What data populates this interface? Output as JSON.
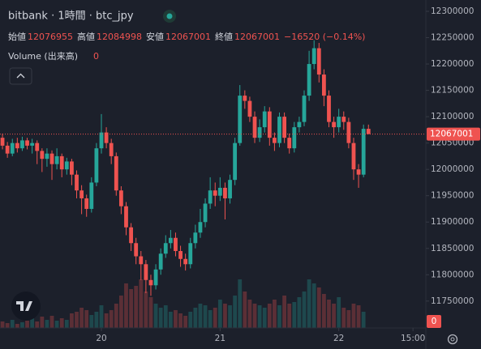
{
  "chart_data": {
    "type": "candlestick",
    "title": "bitbank · 1時間 · btc_jpy",
    "ohlc_labels": [
      "始値",
      "高値",
      "安値",
      "終値"
    ],
    "change": "−16520 (−0.14%)",
    "volume_label": "Volume (出来高)",
    "up_color": "#26a69a",
    "down_color": "#ef5350",
    "grid": false,
    "ylim": [
      11699000,
      12321500
    ],
    "yticks": [
      11750000,
      11800000,
      11850000,
      11900000,
      11950000,
      12000000,
      12050000,
      12100000,
      12150000,
      12200000,
      12250000,
      12300000
    ],
    "xlim": [
      -0.5,
      85.6
    ],
    "xticks": [
      {
        "value": 20,
        "label": "20"
      },
      {
        "value": 44,
        "label": "21"
      },
      {
        "value": 68,
        "label": "22"
      },
      {
        "value": 83,
        "label": "15:00"
      }
    ],
    "volume_lim": [
      0,
      100
    ],
    "candles": [
      [
        12060000,
        12068000,
        12038000,
        12045000
      ],
      [
        12045000,
        12052000,
        12022000,
        12030000
      ],
      [
        12030000,
        12058000,
        12025000,
        12050000
      ],
      [
        12050000,
        12060000,
        12032000,
        12040000
      ],
      [
        12040000,
        12062000,
        12035000,
        12055000
      ],
      [
        12055000,
        12060000,
        12038000,
        12045000
      ],
      [
        12045000,
        12058000,
        12030000,
        12050000
      ],
      [
        12050000,
        12055000,
        12010000,
        12035000
      ],
      [
        12035000,
        12040000,
        11995000,
        12020000
      ],
      [
        12020000,
        12040000,
        12005000,
        12030000
      ],
      [
        12030000,
        12036000,
        11980000,
        12010000
      ],
      [
        12010000,
        12040000,
        12000000,
        12025000
      ],
      [
        12025000,
        12030000,
        11985000,
        12000000
      ],
      [
        12000000,
        12022000,
        11990000,
        12015000
      ],
      [
        12015000,
        12020000,
        11970000,
        11990000
      ],
      [
        11990000,
        11998000,
        11945000,
        11960000
      ],
      [
        11960000,
        11970000,
        11915000,
        11945000
      ],
      [
        11945000,
        11952000,
        11910000,
        11925000
      ],
      [
        11925000,
        11985000,
        11918000,
        11975000
      ],
      [
        11975000,
        12050000,
        11968000,
        12040000
      ],
      [
        12040000,
        12105000,
        12030000,
        12070000
      ],
      [
        12070000,
        12080000,
        12040000,
        12050000
      ],
      [
        12050000,
        12058000,
        12010000,
        12025000
      ],
      [
        12025000,
        12032000,
        11950000,
        11960000
      ],
      [
        11960000,
        11968000,
        11915000,
        11930000
      ],
      [
        11930000,
        11938000,
        11875000,
        11890000
      ],
      [
        11890000,
        11898000,
        11845000,
        11860000
      ],
      [
        11860000,
        11870000,
        11820000,
        11835000
      ],
      [
        11835000,
        11845000,
        11790000,
        11820000
      ],
      [
        11820000,
        11828000,
        11765000,
        11790000
      ],
      [
        11790000,
        11800000,
        11760000,
        11780000
      ],
      [
        11780000,
        11820000,
        11772000,
        11810000
      ],
      [
        11810000,
        11850000,
        11800000,
        11840000
      ],
      [
        11840000,
        11875000,
        11832000,
        11860000
      ],
      [
        11860000,
        11885000,
        11850000,
        11870000
      ],
      [
        11870000,
        11880000,
        11835000,
        11845000
      ],
      [
        11845000,
        11855000,
        11815000,
        11830000
      ],
      [
        11830000,
        11840000,
        11808000,
        11820000
      ],
      [
        11820000,
        11870000,
        11812000,
        11860000
      ],
      [
        11860000,
        11895000,
        11850000,
        11880000
      ],
      [
        11880000,
        11925000,
        11870000,
        11900000
      ],
      [
        11900000,
        11945000,
        11890000,
        11935000
      ],
      [
        11935000,
        11985000,
        11925000,
        11960000
      ],
      [
        11960000,
        11975000,
        11930000,
        11950000
      ],
      [
        11950000,
        11985000,
        11940000,
        11965000
      ],
      [
        11965000,
        11975000,
        11905000,
        11945000
      ],
      [
        11945000,
        11990000,
        11935000,
        11980000
      ],
      [
        11980000,
        12060000,
        11970000,
        12050000
      ],
      [
        12050000,
        12160000,
        12045000,
        12140000
      ],
      [
        12140000,
        12150000,
        12115000,
        12130000
      ],
      [
        12130000,
        12138000,
        12090000,
        12100000
      ],
      [
        12100000,
        12110000,
        12050000,
        12060000
      ],
      [
        12060000,
        12095000,
        12052000,
        12080000
      ],
      [
        12080000,
        12120000,
        12070000,
        12110000
      ],
      [
        12110000,
        12118000,
        12045000,
        12060000
      ],
      [
        12060000,
        12070000,
        12035000,
        12050000
      ],
      [
        12050000,
        12108000,
        12042000,
        12100000
      ],
      [
        12100000,
        12108000,
        12050000,
        12060000
      ],
      [
        12060000,
        12068000,
        12030000,
        12040000
      ],
      [
        12040000,
        12090000,
        12032000,
        12080000
      ],
      [
        12080000,
        12100000,
        12070000,
        12090000
      ],
      [
        12090000,
        12150000,
        12082000,
        12140000
      ],
      [
        12140000,
        12225000,
        12130000,
        12200000
      ],
      [
        12200000,
        12245000,
        12190000,
        12230000
      ],
      [
        12230000,
        12240000,
        12165000,
        12180000
      ],
      [
        12180000,
        12190000,
        12120000,
        12140000
      ],
      [
        12140000,
        12150000,
        12080000,
        12090000
      ],
      [
        12090000,
        12100000,
        12060000,
        12080000
      ],
      [
        12080000,
        12115000,
        12070000,
        12100000
      ],
      [
        12100000,
        12110000,
        12075000,
        12090000
      ],
      [
        12090000,
        12098000,
        12040000,
        12050000
      ],
      [
        12050000,
        12060000,
        11980000,
        12000000
      ],
      [
        12000000,
        12010000,
        11965000,
        11990000
      ],
      [
        11990000,
        12085000,
        11985000,
        12076955
      ],
      [
        12076955,
        12084998,
        12067001,
        12067001
      ]
    ],
    "volumes": [
      8,
      6,
      10,
      5,
      7,
      9,
      12,
      8,
      14,
      10,
      15,
      9,
      12,
      10,
      18,
      20,
      25,
      22,
      16,
      20,
      28,
      18,
      22,
      30,
      40,
      55,
      48,
      52,
      60,
      45,
      38,
      30,
      25,
      28,
      20,
      22,
      18,
      15,
      20,
      25,
      30,
      28,
      22,
      25,
      35,
      30,
      28,
      40,
      60,
      45,
      35,
      30,
      28,
      25,
      30,
      35,
      28,
      40,
      30,
      32,
      38,
      45,
      60,
      55,
      50,
      42,
      35,
      30,
      38,
      25,
      22,
      30,
      28,
      20,
      0
    ]
  }
}
